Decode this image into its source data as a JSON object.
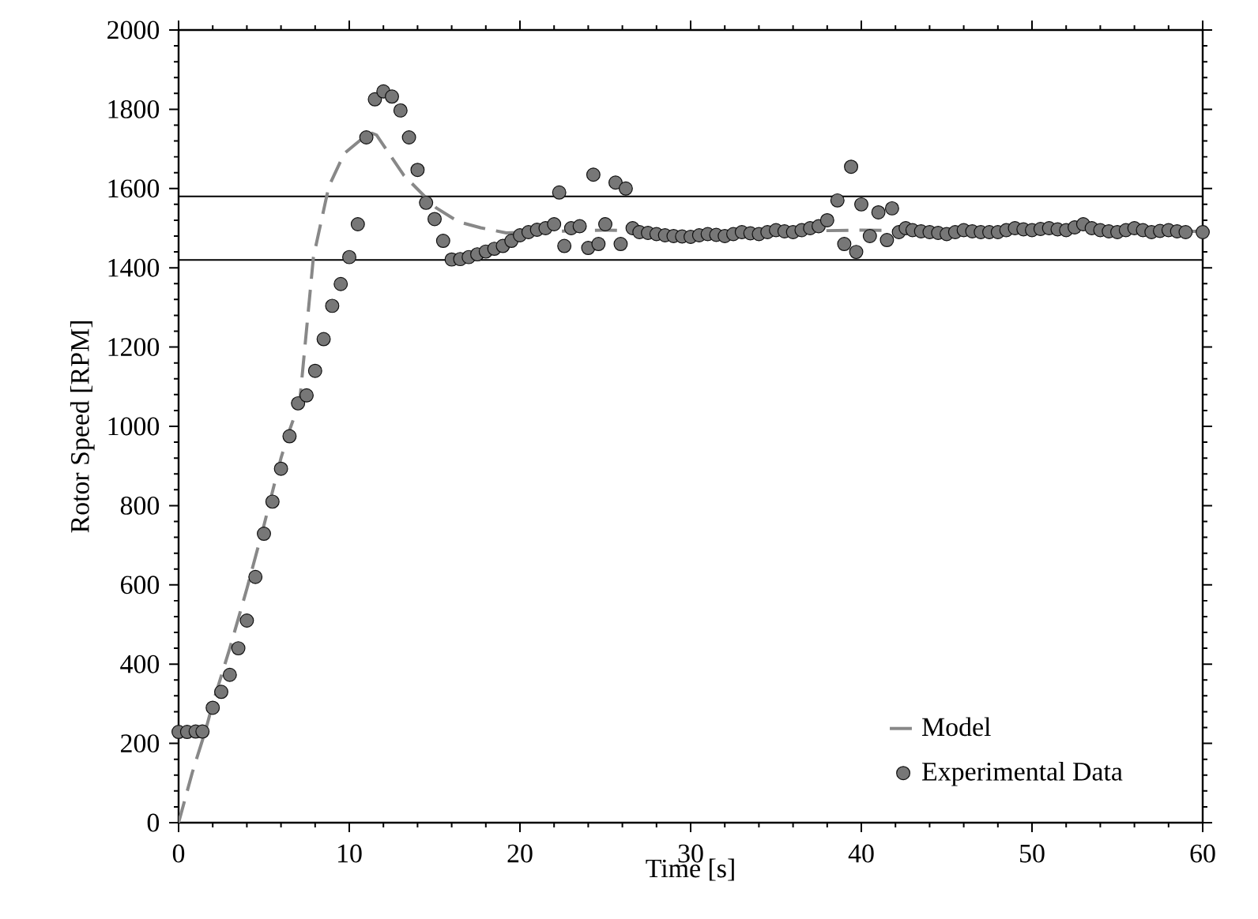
{
  "chart_data": {
    "type": "line",
    "xlabel": "Time [s]",
    "ylabel": "Rotor Speed [RPM]",
    "xlim": [
      0,
      60
    ],
    "ylim": [
      0,
      2000
    ],
    "xticks": [
      0,
      10,
      20,
      30,
      40,
      50,
      60
    ],
    "yticks": [
      0,
      200,
      400,
      600,
      800,
      1000,
      1200,
      1400,
      1600,
      1800,
      2000
    ],
    "legend": "bottom right",
    "ref_lines": [
      {
        "axis": "y",
        "value": 1580,
        "color": "#000000"
      },
      {
        "axis": "y",
        "value": 1420,
        "color": "#000000"
      }
    ],
    "series": [
      {
        "name": "Model",
        "line_style": "dashed",
        "color": "#888888",
        "x": [
          0,
          0.8,
          1.6,
          2,
          3,
          4,
          5,
          6,
          6.5,
          7.1,
          7.9,
          8.8,
          9.7,
          11.2,
          11.6,
          13.2,
          15.1,
          16.4,
          17.7,
          19.2,
          22,
          25,
          30,
          35,
          40,
          45,
          50,
          55,
          60
        ],
        "values": [
          0,
          126,
          236,
          300,
          440,
          590,
          750,
          920,
          990,
          1064,
          1427,
          1605,
          1688,
          1742,
          1735,
          1633,
          1551,
          1516,
          1501,
          1488,
          1492,
          1495,
          1490,
          1492,
          1495,
          1492,
          1493,
          1492,
          1492
        ]
      },
      {
        "name": "Experimental Data",
        "type": "scatter",
        "marker": "circle",
        "color": "#111111",
        "x": [
          0,
          0.5,
          1,
          1.4,
          2,
          2.5,
          3,
          3.5,
          4,
          4.5,
          5,
          5.5,
          6,
          6.5,
          7,
          7.5,
          8,
          8.5,
          9,
          9.5,
          10,
          10.5,
          11,
          11.5,
          12,
          12.5,
          13,
          13.5,
          14,
          14.5,
          15,
          15.5,
          16,
          16.5,
          17,
          17.5,
          18,
          18.5,
          19,
          19.5,
          20,
          20.5,
          21,
          21.5,
          22,
          22.3,
          22.6,
          23,
          23.5,
          24,
          24.3,
          24.6,
          25,
          25.6,
          25.9,
          26.2,
          26.6,
          27,
          27.5,
          28,
          28.5,
          29,
          29.5,
          30,
          30.5,
          31,
          31.5,
          32,
          32.5,
          33,
          33.5,
          34,
          34.5,
          35,
          35.5,
          36,
          36.5,
          37,
          37.5,
          38,
          38.6,
          39,
          39.4,
          39.7,
          40,
          40.5,
          41,
          41.5,
          41.8,
          42.2,
          42.6,
          43,
          43.5,
          44,
          44.5,
          45,
          45.5,
          46,
          46.5,
          47,
          47.5,
          48,
          48.5,
          49,
          49.5,
          50,
          50.5,
          51,
          51.5,
          52,
          52.5,
          53,
          53.5,
          54,
          54.5,
          55,
          55.5,
          56,
          56.5,
          57,
          57.5,
          58,
          58.5,
          59,
          60
        ],
        "values": [
          229,
          229,
          230,
          230,
          290,
          330,
          373,
          440,
          510,
          620,
          729,
          810,
          893,
          975,
          1058,
          1078,
          1140,
          1220,
          1304,
          1359,
          1427,
          1510,
          1729,
          1825,
          1845,
          1832,
          1797,
          1729,
          1647,
          1564,
          1523,
          1468,
          1421,
          1422,
          1427,
          1434,
          1441,
          1448,
          1455,
          1468,
          1482,
          1490,
          1496,
          1500,
          1510,
          1590,
          1455,
          1500,
          1505,
          1450,
          1635,
          1460,
          1510,
          1615,
          1460,
          1600,
          1500,
          1490,
          1488,
          1485,
          1482,
          1480,
          1479,
          1478,
          1482,
          1485,
          1483,
          1480,
          1485,
          1490,
          1487,
          1485,
          1490,
          1495,
          1492,
          1490,
          1495,
          1500,
          1505,
          1520,
          1570,
          1460,
          1655,
          1440,
          1560,
          1480,
          1540,
          1470,
          1550,
          1490,
          1500,
          1495,
          1492,
          1490,
          1488,
          1485,
          1490,
          1495,
          1492,
          1490,
          1490,
          1490,
          1495,
          1500,
          1497,
          1495,
          1498,
          1500,
          1497,
          1495,
          1502,
          1510,
          1500,
          1495,
          1492,
          1490,
          1495,
          1500,
          1495,
          1490,
          1493,
          1495,
          1492,
          1490,
          1490
        ]
      }
    ]
  }
}
